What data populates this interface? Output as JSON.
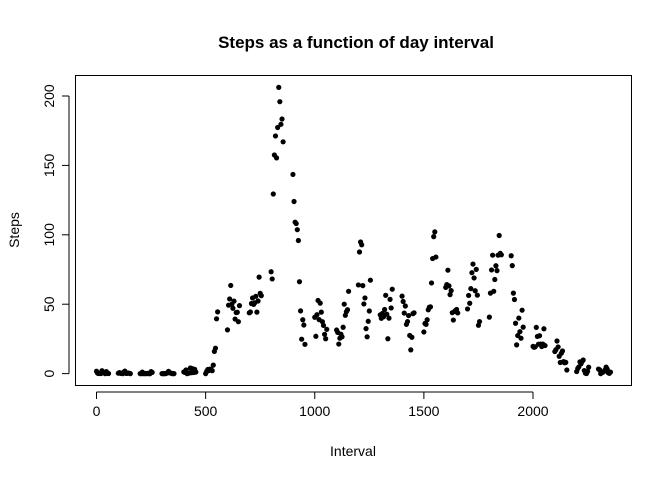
{
  "chart_data": {
    "type": "scatter",
    "title": "Steps as a function of day interval",
    "xlabel": "Interval",
    "ylabel": "Steps",
    "xlim": [
      -94,
      2449
    ],
    "ylim": [
      -8.2,
      214.4
    ],
    "xticks": [
      0,
      500,
      1000,
      1500,
      2000
    ],
    "yticks": [
      0,
      50,
      100,
      150,
      200
    ],
    "grid": false,
    "legend": "none",
    "point_color": "#000000",
    "points": [
      [
        0,
        1.7
      ],
      [
        5,
        0.3
      ],
      [
        10,
        0.1
      ],
      [
        15,
        0.2
      ],
      [
        20,
        0.1
      ],
      [
        25,
        2.1
      ],
      [
        30,
        0.5
      ],
      [
        35,
        0.9
      ],
      [
        40,
        0
      ],
      [
        45,
        1.5
      ],
      [
        50,
        0.3
      ],
      [
        55,
        0.1
      ],
      [
        100,
        0.3
      ],
      [
        105,
        0.7
      ],
      [
        110,
        0.2
      ],
      [
        115,
        0.3
      ],
      [
        120,
        0
      ],
      [
        125,
        1.1
      ],
      [
        130,
        1.8
      ],
      [
        135,
        0.2
      ],
      [
        140,
        0.2
      ],
      [
        145,
        0.4
      ],
      [
        150,
        0.3
      ],
      [
        155,
        0
      ],
      [
        200,
        0
      ],
      [
        205,
        0
      ],
      [
        210,
        1.1
      ],
      [
        215,
        0
      ],
      [
        220,
        0
      ],
      [
        225,
        0.1
      ],
      [
        230,
        0
      ],
      [
        235,
        0.2
      ],
      [
        240,
        0
      ],
      [
        245,
        0
      ],
      [
        250,
        1.5
      ],
      [
        255,
        0.9
      ],
      [
        300,
        0
      ],
      [
        305,
        0
      ],
      [
        310,
        0
      ],
      [
        315,
        0
      ],
      [
        320,
        0.2
      ],
      [
        325,
        0.6
      ],
      [
        330,
        1.6
      ],
      [
        335,
        0.6
      ],
      [
        340,
        0.5
      ],
      [
        345,
        0.1
      ],
      [
        350,
        0
      ],
      [
        355,
        0
      ],
      [
        400,
        1.2
      ],
      [
        405,
        0.9
      ],
      [
        410,
        2.6
      ],
      [
        415,
        0
      ],
      [
        420,
        0.3
      ],
      [
        425,
        0.4
      ],
      [
        430,
        4.1
      ],
      [
        435,
        0.7
      ],
      [
        440,
        3.5
      ],
      [
        445,
        0.8
      ],
      [
        450,
        3.1
      ],
      [
        455,
        1.1
      ],
      [
        500,
        0
      ],
      [
        505,
        1.6
      ],
      [
        510,
        3
      ],
      [
        515,
        2.2
      ],
      [
        520,
        3.3
      ],
      [
        525,
        3
      ],
      [
        530,
        2.1
      ],
      [
        535,
        6.1
      ],
      [
        540,
        16
      ],
      [
        545,
        18.3
      ],
      [
        550,
        39.5
      ],
      [
        555,
        44.5
      ],
      [
        600,
        31.5
      ],
      [
        605,
        49.3
      ],
      [
        610,
        53.8
      ],
      [
        615,
        63.5
      ],
      [
        620,
        50
      ],
      [
        625,
        47.1
      ],
      [
        630,
        52.2
      ],
      [
        635,
        39.3
      ],
      [
        640,
        44
      ],
      [
        645,
        44.2
      ],
      [
        650,
        37.4
      ],
      [
        655,
        49
      ],
      [
        700,
        43.8
      ],
      [
        705,
        44.4
      ],
      [
        710,
        50.5
      ],
      [
        715,
        54.5
      ],
      [
        720,
        49.9
      ],
      [
        725,
        51
      ],
      [
        730,
        55.7
      ],
      [
        735,
        44.3
      ],
      [
        740,
        52.3
      ],
      [
        745,
        69.5
      ],
      [
        750,
        57.8
      ],
      [
        755,
        56.2
      ],
      [
        800,
        73.4
      ],
      [
        805,
        68.2
      ],
      [
        810,
        129.4
      ],
      [
        815,
        157.5
      ],
      [
        820,
        171.2
      ],
      [
        825,
        155.4
      ],
      [
        830,
        177.3
      ],
      [
        835,
        206.2
      ],
      [
        840,
        195.9
      ],
      [
        845,
        179.6
      ],
      [
        850,
        183.4
      ],
      [
        855,
        167
      ],
      [
        900,
        143.5
      ],
      [
        905,
        124
      ],
      [
        910,
        109.1
      ],
      [
        915,
        108.1
      ],
      [
        920,
        103.7
      ],
      [
        925,
        95.9
      ],
      [
        930,
        66.2
      ],
      [
        935,
        45.2
      ],
      [
        940,
        24.8
      ],
      [
        945,
        38.8
      ],
      [
        950,
        35
      ],
      [
        955,
        21.1
      ],
      [
        1000,
        40.6
      ],
      [
        1005,
        26.9
      ],
      [
        1010,
        42.4
      ],
      [
        1015,
        52.7
      ],
      [
        1020,
        38.9
      ],
      [
        1025,
        50.8
      ],
      [
        1030,
        44.3
      ],
      [
        1035,
        37.4
      ],
      [
        1040,
        34.7
      ],
      [
        1045,
        28.3
      ],
      [
        1050,
        25.1
      ],
      [
        1055,
        31.9
      ],
      [
        1100,
        31.4
      ],
      [
        1105,
        29.7
      ],
      [
        1110,
        21.3
      ],
      [
        1115,
        25.5
      ],
      [
        1120,
        28.4
      ],
      [
        1125,
        26.5
      ],
      [
        1130,
        33.4
      ],
      [
        1135,
        50
      ],
      [
        1140,
        42
      ],
      [
        1145,
        44.6
      ],
      [
        1150,
        46
      ],
      [
        1155,
        59.3
      ],
      [
        1200,
        63.9
      ],
      [
        1205,
        87.6
      ],
      [
        1210,
        94.8
      ],
      [
        1215,
        92.8
      ],
      [
        1220,
        63.4
      ],
      [
        1225,
        50.2
      ],
      [
        1230,
        54.5
      ],
      [
        1235,
        32.4
      ],
      [
        1240,
        26.5
      ],
      [
        1245,
        37.7
      ],
      [
        1250,
        45.1
      ],
      [
        1255,
        67.3
      ],
      [
        1300,
        42.3
      ],
      [
        1305,
        39.9
      ],
      [
        1310,
        43.3
      ],
      [
        1315,
        40.98
      ],
      [
        1320,
        46.2
      ],
      [
        1325,
        56.4
      ],
      [
        1330,
        42.8
      ],
      [
        1335,
        25.1
      ],
      [
        1340,
        39.97
      ],
      [
        1345,
        53.5
      ],
      [
        1350,
        47.3
      ],
      [
        1355,
        60.8
      ],
      [
        1400,
        55.8
      ],
      [
        1405,
        51.96
      ],
      [
        1410,
        43.6
      ],
      [
        1415,
        48.7
      ],
      [
        1420,
        35.5
      ],
      [
        1425,
        37.5
      ],
      [
        1430,
        41.8
      ],
      [
        1435,
        27.5
      ],
      [
        1440,
        17.1
      ],
      [
        1445,
        26.2
      ],
      [
        1450,
        43.2
      ],
      [
        1455,
        43.8
      ],
      [
        1500,
        30
      ],
      [
        1505,
        36.1
      ],
      [
        1510,
        35.5
      ],
      [
        1515,
        38.8
      ],
      [
        1520,
        45.96
      ],
      [
        1525,
        47.8
      ],
      [
        1530,
        48.1
      ],
      [
        1535,
        65.3
      ],
      [
        1540,
        82.9
      ],
      [
        1545,
        98.7
      ],
      [
        1550,
        102.1
      ],
      [
        1555,
        83.96
      ],
      [
        1600,
        62.1
      ],
      [
        1605,
        64.1
      ],
      [
        1610,
        74.5
      ],
      [
        1615,
        63.2
      ],
      [
        1620,
        56.9
      ],
      [
        1625,
        59.8
      ],
      [
        1630,
        43.9
      ],
      [
        1635,
        38.6
      ],
      [
        1640,
        44.7
      ],
      [
        1645,
        45.5
      ],
      [
        1650,
        46.2
      ],
      [
        1655,
        43.7
      ],
      [
        1700,
        46.6
      ],
      [
        1705,
        56.3
      ],
      [
        1710,
        50.7
      ],
      [
        1715,
        61.2
      ],
      [
        1720,
        72.7
      ],
      [
        1725,
        78.9
      ],
      [
        1730,
        68.9
      ],
      [
        1735,
        59.7
      ],
      [
        1740,
        75.1
      ],
      [
        1745,
        56.5
      ],
      [
        1750,
        34.8
      ],
      [
        1755,
        37.5
      ],
      [
        1800,
        40.7
      ],
      [
        1805,
        58
      ],
      [
        1810,
        74.7
      ],
      [
        1815,
        85.3
      ],
      [
        1820,
        59.3
      ],
      [
        1825,
        67.8
      ],
      [
        1830,
        77.7
      ],
      [
        1835,
        74.2
      ],
      [
        1840,
        85.3
      ],
      [
        1845,
        99.5
      ],
      [
        1850,
        86.6
      ],
      [
        1855,
        85.6
      ],
      [
        1900,
        84.9
      ],
      [
        1905,
        77.8
      ],
      [
        1910,
        58
      ],
      [
        1915,
        53.4
      ],
      [
        1920,
        36.3
      ],
      [
        1925,
        20.7
      ],
      [
        1930,
        27.4
      ],
      [
        1935,
        40
      ],
      [
        1940,
        30.2
      ],
      [
        1945,
        25.5
      ],
      [
        1950,
        45.7
      ],
      [
        1955,
        33.5
      ],
      [
        2000,
        19.6
      ],
      [
        2005,
        19
      ],
      [
        2010,
        19.3
      ],
      [
        2015,
        33.3
      ],
      [
        2020,
        26.8
      ],
      [
        2025,
        21.2
      ],
      [
        2030,
        27.3
      ],
      [
        2035,
        21.3
      ],
      [
        2040,
        19.5
      ],
      [
        2045,
        21.3
      ],
      [
        2050,
        32.3
      ],
      [
        2055,
        20.2
      ],
      [
        2100,
        15.9
      ],
      [
        2105,
        17.2
      ],
      [
        2110,
        23.5
      ],
      [
        2115,
        19.2
      ],
      [
        2120,
        12.5
      ],
      [
        2125,
        8
      ],
      [
        2130,
        14.7
      ],
      [
        2135,
        16.3
      ],
      [
        2140,
        8.7
      ],
      [
        2145,
        7.8
      ],
      [
        2150,
        8.1
      ],
      [
        2155,
        2.6
      ],
      [
        2200,
        1.5
      ],
      [
        2205,
        3.7
      ],
      [
        2210,
        4.8
      ],
      [
        2215,
        8.5
      ],
      [
        2220,
        7.1
      ],
      [
        2225,
        8.7
      ],
      [
        2230,
        9.8
      ],
      [
        2235,
        2.2
      ],
      [
        2240,
        0.3
      ],
      [
        2245,
        0.1
      ],
      [
        2250,
        1.6
      ],
      [
        2255,
        4.6
      ],
      [
        2300,
        3.3
      ],
      [
        2305,
        2.8
      ],
      [
        2310,
        0
      ],
      [
        2315,
        0.8
      ],
      [
        2320,
        1
      ],
      [
        2325,
        1.6
      ],
      [
        2330,
        2.6
      ],
      [
        2335,
        4.7
      ],
      [
        2340,
        3.3
      ],
      [
        2345,
        0.6
      ],
      [
        2350,
        0.2
      ],
      [
        2355,
        1.1
      ]
    ]
  }
}
